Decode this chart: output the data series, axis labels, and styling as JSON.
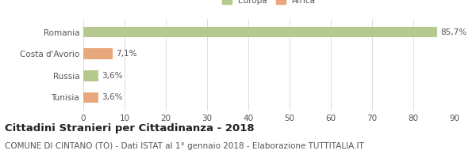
{
  "categories": [
    "Romania",
    "Costa d'Avorio",
    "Russia",
    "Tunisia"
  ],
  "values": [
    85.7,
    7.1,
    3.6,
    3.6
  ],
  "labels": [
    "85,7%",
    "7,1%",
    "3,6%",
    "3,6%"
  ],
  "colors": [
    "#b5c98e",
    "#e8a87c",
    "#b5c98e",
    "#e8a87c"
  ],
  "legend": [
    {
      "label": "Europa",
      "color": "#b5c98e"
    },
    {
      "label": "Africa",
      "color": "#e8a87c"
    }
  ],
  "xlim": [
    0,
    90
  ],
  "xticks": [
    0,
    10,
    20,
    30,
    40,
    50,
    60,
    70,
    80,
    90
  ],
  "title": "Cittadini Stranieri per Cittadinanza - 2018",
  "subtitle": "COMUNE DI CINTANO (TO) - Dati ISTAT al 1° gennaio 2018 - Elaborazione TUTTITALIA.IT",
  "title_fontsize": 9.5,
  "subtitle_fontsize": 7.5,
  "label_fontsize": 7.5,
  "tick_fontsize": 7.5,
  "bar_height": 0.5,
  "grid_color": "#dddddd",
  "bg_color": "#ffffff",
  "text_color": "#555555",
  "title_color": "#222222"
}
